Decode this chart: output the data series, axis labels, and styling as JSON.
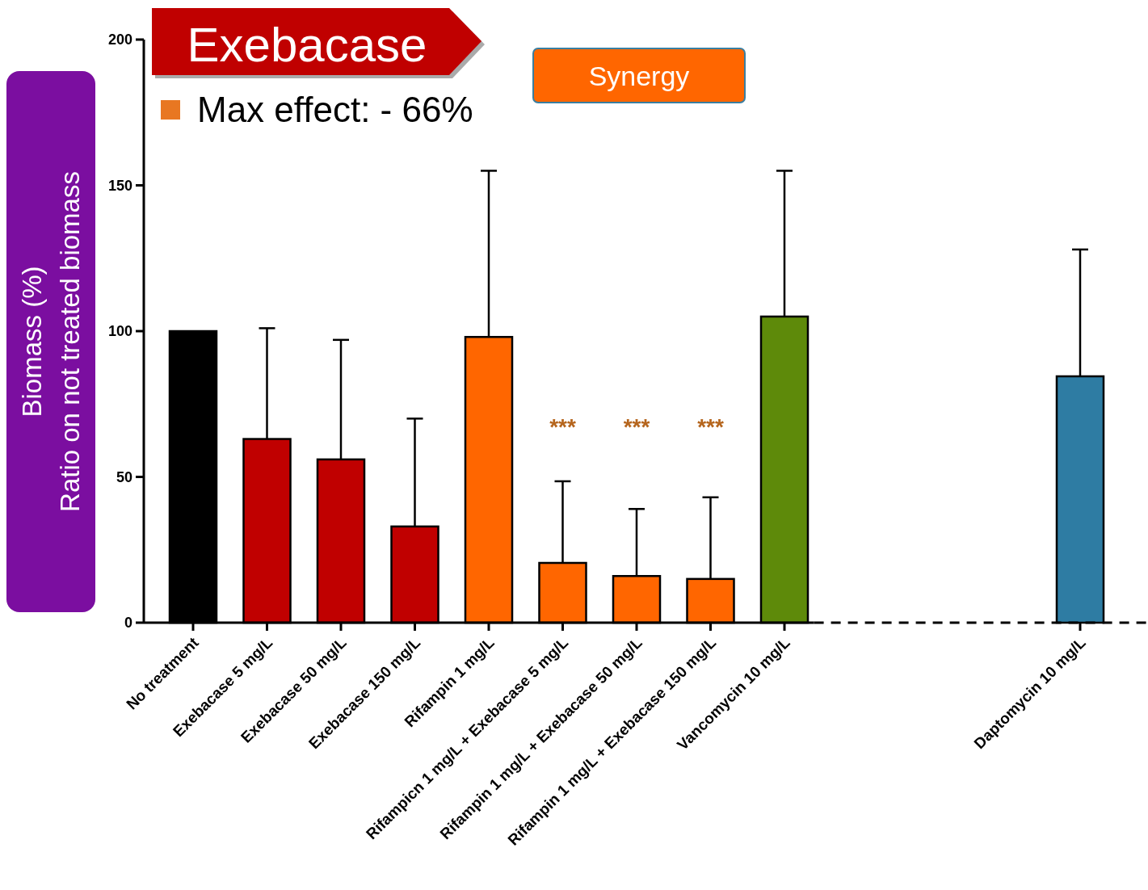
{
  "chart_data": {
    "type": "bar",
    "title": "Exebacase",
    "ylabel": "Biomass (%)\nRatio on not treated biomass",
    "categories": [
      "No treatment",
      "Exebacase 5 mg/L",
      "Exebacase 50 mg/L",
      "Exebacase 150 mg/L",
      "Rifampin 1 mg/L",
      "Rifampicn 1 mg/L + Exebacase 5 mg/L",
      "Rifampin 1 mg/L + Exebacase 50 mg/L",
      "Rifampin 1 mg/L + Exebacase 150 mg/L",
      "Vancomycin 10 mg/L",
      null,
      null,
      null,
      "Daptomycin 10 mg/L"
    ],
    "values": [
      100,
      63,
      56,
      33,
      98,
      20.5,
      16,
      15,
      105,
      null,
      null,
      null,
      84.5
    ],
    "colors": [
      "#000000",
      "#c00000",
      "#c00000",
      "#c00000",
      "#ff6600",
      "#ff6600",
      "#ff6600",
      "#ff6600",
      "#5e8a0a",
      null,
      null,
      null,
      "#2e7ca3"
    ],
    "errors": [
      null,
      [
        63,
        101
      ],
      [
        56,
        97
      ],
      [
        33,
        70
      ],
      [
        98,
        155
      ],
      [
        20.5,
        48.5
      ],
      [
        16,
        39
      ],
      [
        15,
        43
      ],
      [
        105,
        155
      ],
      null,
      null,
      null,
      [
        84.5,
        128
      ]
    ],
    "ylim": [
      0,
      200
    ],
    "yticks": [
      0,
      50,
      100,
      150,
      200
    ],
    "grid": false,
    "ref_lines": [
      {
        "axis": "y",
        "value": 0,
        "line_style": "dashed",
        "color": "#000000"
      }
    ],
    "annotations": [
      "Max effect: - 66%",
      "Synergy",
      "***",
      "***",
      "***"
    ]
  }
}
